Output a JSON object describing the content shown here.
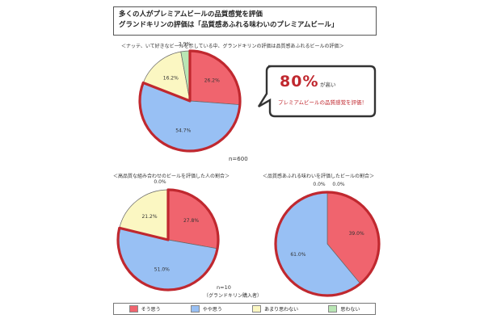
{
  "header": {
    "line1": "多くの人がプレミアムビールの品質感覚を評価",
    "line2": "グランドキリンの評価は「品質感あふれる味わいのプレミアムビール」"
  },
  "callout": {
    "big": "80%",
    "small1": "が高い",
    "small2": "プレミアムビールの品質感覚を評価！"
  },
  "legend": [
    {
      "label": "そう思う",
      "color": "#f0646e"
    },
    {
      "label": "やや思う",
      "color": "#98c0f4"
    },
    {
      "label": "あまり思わない",
      "color": "#fbf7c2"
    },
    {
      "label": "思わない",
      "color": "#b9e6b4"
    }
  ],
  "chart_data": [
    {
      "type": "pie",
      "caption": "＜ナッテ、いて好きなビールを示している中、グランドキリンの評価は品質感あふれるビールの評価＞",
      "n": "n=600",
      "slices": [
        {
          "label": "そう思う",
          "value": 26.2,
          "color": "#f0646e",
          "text": "26.2%"
        },
        {
          "label": "やや思う",
          "value": 54.7,
          "color": "#98c0f4",
          "text": "54.7%"
        },
        {
          "label": "あまり思わない",
          "value": 16.2,
          "color": "#fbf7c2",
          "text": "16.2%"
        },
        {
          "label": "思わない",
          "value": 2.9,
          "color": "#b9e6b4",
          "text": "2.9%"
        }
      ],
      "highlight": [
        0,
        1
      ]
    },
    {
      "type": "pie",
      "caption": "＜高品質な組み合わせのビールを評価した人の割合＞",
      "n": "",
      "slices": [
        {
          "label": "そう思う",
          "value": 27.8,
          "color": "#f0646e",
          "text": "27.8%"
        },
        {
          "label": "やや思う",
          "value": 51.0,
          "color": "#98c0f4",
          "text": "51.0%"
        },
        {
          "label": "あまり思わない",
          "value": 21.2,
          "color": "#fbf7c2",
          "text": "21.2%"
        },
        {
          "label": "思わない",
          "value": 0.0,
          "color": "#b9e6b4",
          "text": "0.0%"
        }
      ],
      "highlight": [
        0,
        1
      ]
    },
    {
      "type": "pie",
      "caption": "＜品質感あふれる味わいを評価したビールの割合＞",
      "n": "",
      "slices": [
        {
          "label": "そう思う",
          "value": 39.0,
          "color": "#f0646e",
          "text": "39.0%"
        },
        {
          "label": "やや思う",
          "value": 61.0,
          "color": "#98c0f4",
          "text": "61.0%"
        },
        {
          "label": "あまり思わない",
          "value": 0.0,
          "color": "#fbf7c2",
          "text": "0.0%"
        },
        {
          "label": "思わない",
          "value": 0.0,
          "color": "#b9e6b4",
          "text": "0.0%"
        }
      ],
      "highlight": [
        0,
        1
      ]
    }
  ],
  "footer": {
    "n2": "n=10",
    "n2_sub": "（グランドキリン購入者）"
  }
}
